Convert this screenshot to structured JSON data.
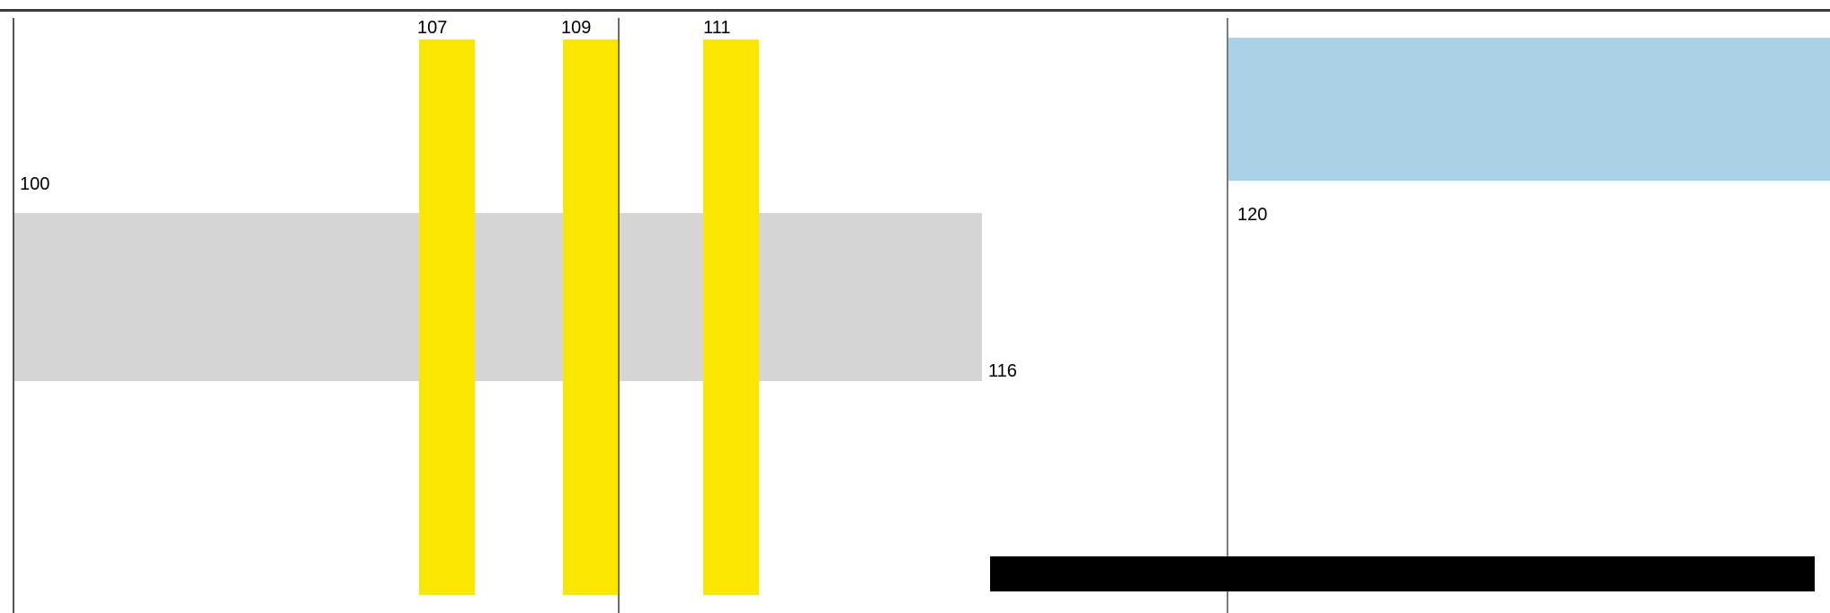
{
  "colors": {
    "gray_band": "#d6d6d6",
    "yellow_bar": "#fae600",
    "blue_band": "#abd1e6",
    "black_bar": "#000000",
    "guide_line": "#7a7a7a"
  },
  "labels": {
    "gray_start": "100",
    "gray_end": "116",
    "yellow_1": "107",
    "yellow_2": "109",
    "yellow_3": "111",
    "blue_start": "120"
  }
}
